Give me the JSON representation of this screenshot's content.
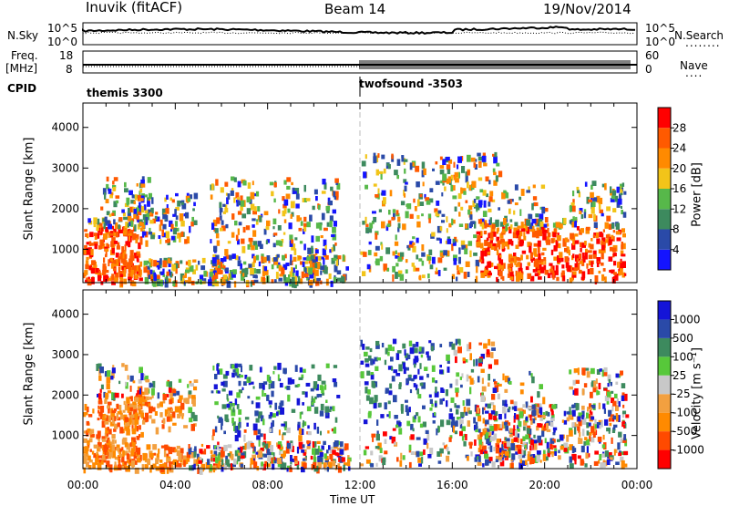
{
  "header": {
    "station": "Inuvik (fitACF)",
    "beam": "Beam 14",
    "date": "19/Nov/2014"
  },
  "strip_labels": {
    "nsky": "N.Sky",
    "nsearch": "N.Search",
    "nsearch_dots": "........",
    "freq": "Freq.",
    "mhz": "[MHz]",
    "cpid": "CPID",
    "nave": "Nave",
    "nave_dots": "....",
    "noise_tick_top": "10^5",
    "noise_tick_bot": "10^0",
    "noise_tick_top_r": "10^5",
    "noise_tick_bot_r": "10^0",
    "freq_tick_top": "18",
    "freq_tick_bot": "8",
    "nave_tick_top": "60",
    "nave_tick_bot": "0"
  },
  "cpid_segments": [
    {
      "label": "themis 3300",
      "start_hr": 0
    },
    {
      "label": "twofsound -3503",
      "start_hr": 12
    }
  ],
  "chart_data": [
    {
      "type": "heatmap",
      "name": "power-panel",
      "ylabel": "Slant Range [km]",
      "xlabel": "",
      "y_ticks": [
        "1000",
        "2000",
        "3000",
        "4000"
      ],
      "ylim": [
        180,
        4600
      ],
      "xlim": [
        0,
        24
      ],
      "colorbar_label": "Power [dB]",
      "colorbar_ticks": [
        "4",
        "8",
        "12",
        "16",
        "20",
        "24",
        "28"
      ],
      "colorbar_colors": [
        "#1414ff",
        "#2a4aa8",
        "#3d8a5e",
        "#57b84a",
        "#f2c419",
        "#ff8a00",
        "#ff5a00",
        "#ff0000"
      ]
    },
    {
      "type": "heatmap",
      "name": "velocity-panel",
      "ylabel": "Slant Range [km]",
      "xlabel": "Time UT",
      "x_ticks": [
        "00:00",
        "04:00",
        "08:00",
        "12:00",
        "16:00",
        "20:00",
        "00:00"
      ],
      "y_ticks": [
        "1000",
        "2000",
        "3000",
        "4000"
      ],
      "ylim": [
        180,
        4600
      ],
      "xlim": [
        0,
        24
      ],
      "colorbar_label": "Velocity [m s⁻¹]",
      "colorbar_ticks": [
        "-1000",
        "-500",
        "-100",
        "-25",
        "25",
        "100",
        "500",
        "1000"
      ],
      "colorbar_colors": [
        "#ff0000",
        "#ff4a00",
        "#ff8a00",
        "#f2a040",
        "#c8c8c8",
        "#57c83a",
        "#3d8a5e",
        "#2a4aa8",
        "#1414d8"
      ]
    }
  ]
}
